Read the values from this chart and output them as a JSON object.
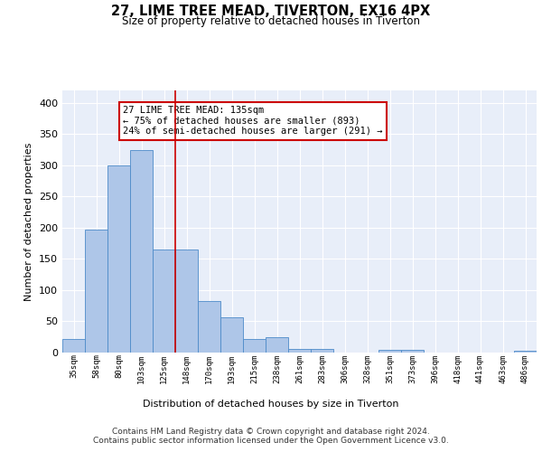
{
  "title1": "27, LIME TREE MEAD, TIVERTON, EX16 4PX",
  "title2": "Size of property relative to detached houses in Tiverton",
  "xlabel": "Distribution of detached houses by size in Tiverton",
  "ylabel": "Number of detached properties",
  "categories": [
    "35sqm",
    "58sqm",
    "80sqm",
    "103sqm",
    "125sqm",
    "148sqm",
    "170sqm",
    "193sqm",
    "215sqm",
    "238sqm",
    "261sqm",
    "283sqm",
    "306sqm",
    "328sqm",
    "351sqm",
    "373sqm",
    "396sqm",
    "418sqm",
    "441sqm",
    "463sqm",
    "486sqm"
  ],
  "values": [
    22,
    197,
    300,
    325,
    165,
    165,
    83,
    57,
    22,
    25,
    6,
    6,
    0,
    0,
    4,
    4,
    0,
    0,
    0,
    0,
    3
  ],
  "bar_color": "#aec6e8",
  "bar_edge_color": "#4d8bc9",
  "background_color": "#e8eef9",
  "grid_color": "#ffffff",
  "vline_x": 4.5,
  "vline_color": "#cc0000",
  "annotation_text": "27 LIME TREE MEAD: 135sqm\n← 75% of detached houses are smaller (893)\n24% of semi-detached houses are larger (291) →",
  "annotation_box_color": "#ffffff",
  "annotation_box_edge_color": "#cc0000",
  "footer_text": "Contains HM Land Registry data © Crown copyright and database right 2024.\nContains public sector information licensed under the Open Government Licence v3.0.",
  "ylim": [
    0,
    420
  ],
  "yticks": [
    0,
    50,
    100,
    150,
    200,
    250,
    300,
    350,
    400
  ]
}
